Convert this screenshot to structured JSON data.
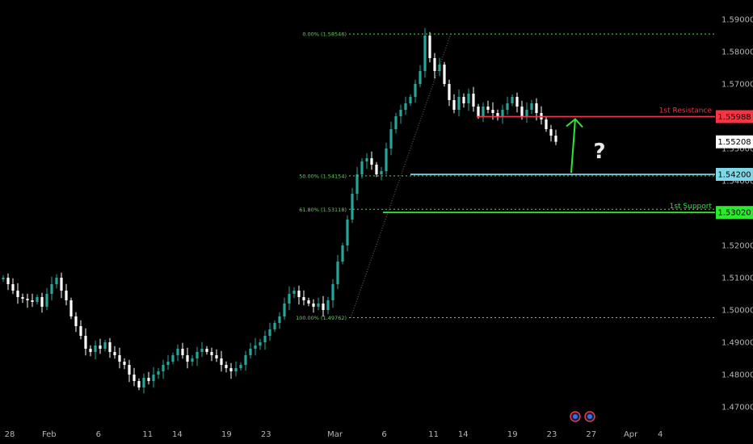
{
  "chart_data": {
    "type": "candlestick",
    "ylim": [
      1.466,
      1.594
    ],
    "y_ticks": [
      "1.59000",
      "1.58000",
      "1.57000",
      "1.56000",
      "1.55000",
      "1.54000",
      "1.53000",
      "1.52000",
      "1.51000",
      "1.50000",
      "1.49000",
      "1.48000",
      "1.47000"
    ],
    "x_ticks": [
      {
        "label": "28",
        "day": 0
      },
      {
        "label": "Feb",
        "day": 4
      },
      {
        "label": "6",
        "day": 9
      },
      {
        "label": "11",
        "day": 14
      },
      {
        "label": "14",
        "day": 17
      },
      {
        "label": "19",
        "day": 22
      },
      {
        "label": "23",
        "day": 26
      },
      {
        "label": "Mar",
        "day": 33
      },
      {
        "label": "6",
        "day": 38
      },
      {
        "label": "11",
        "day": 43
      },
      {
        "label": "14",
        "day": 46
      },
      {
        "label": "19",
        "day": 51
      },
      {
        "label": "23",
        "day": 55
      },
      {
        "label": "27",
        "day": 59
      },
      {
        "label": "Apr",
        "day": 63
      },
      {
        "label": "4",
        "day": 66
      }
    ],
    "fib_levels": [
      {
        "label": "0.00% (1.58546)",
        "value": 1.58546
      },
      {
        "label": "50.00% (1.54154)",
        "value": 1.54154
      },
      {
        "label": "61.80% (1.53118)",
        "value": 1.53118
      },
      {
        "label": "100.00% (1.49762)",
        "value": 1.49762
      }
    ],
    "levels": [
      {
        "name": "1st Resistance",
        "value": 1.55988,
        "price_label": "1.55988",
        "color": "#f23645"
      },
      {
        "name": "",
        "value": 1.542,
        "price_label": "1.54200",
        "color": "#7fd8e8"
      },
      {
        "name": "1st Support",
        "value": 1.5302,
        "price_label": "1.53020",
        "color": "#2ee82e"
      }
    ],
    "current_price": {
      "value": 1.55208,
      "label": "1.55208"
    },
    "annotation": "?",
    "colors": {
      "up": "#26a69a",
      "down": "#ffffff",
      "fib": "#5fd35f",
      "arrow": "#2ee82e",
      "grid": "#000000"
    },
    "grid": false,
    "closes": [
      1.51,
      1.508,
      1.506,
      1.504,
      1.5035,
      1.503,
      1.5025,
      1.504,
      1.501,
      1.505,
      1.508,
      1.51,
      1.506,
      1.503,
      1.498,
      1.495,
      1.492,
      1.488,
      1.487,
      1.489,
      1.488,
      1.49,
      1.487,
      1.486,
      1.484,
      1.483,
      1.48,
      1.478,
      1.476,
      1.479,
      1.478,
      1.48,
      1.481,
      1.483,
      1.484,
      1.486,
      1.488,
      1.486,
      1.484,
      1.485,
      1.487,
      1.488,
      1.487,
      1.486,
      1.485,
      1.483,
      1.482,
      1.481,
      1.482,
      1.483,
      1.486,
      1.488,
      1.489,
      1.49,
      1.492,
      1.494,
      1.496,
      1.498,
      1.502,
      1.505,
      1.506,
      1.504,
      1.503,
      1.502,
      1.501,
      1.502,
      1.5,
      1.503,
      1.508,
      1.515,
      1.52,
      1.528,
      1.536,
      1.542,
      1.546,
      1.547,
      1.545,
      1.542,
      1.543,
      1.55,
      1.556,
      1.56,
      1.562,
      1.564,
      1.566,
      1.57,
      1.574,
      1.585,
      1.578,
      1.574,
      1.576,
      1.57,
      1.565,
      1.562,
      1.566,
      1.564,
      1.567,
      1.563,
      1.56,
      1.563,
      1.562,
      1.561,
      1.56,
      1.562,
      1.564,
      1.566,
      1.563,
      1.56,
      1.562,
      1.564,
      1.561,
      1.559,
      1.556,
      1.554,
      1.5521
    ]
  }
}
